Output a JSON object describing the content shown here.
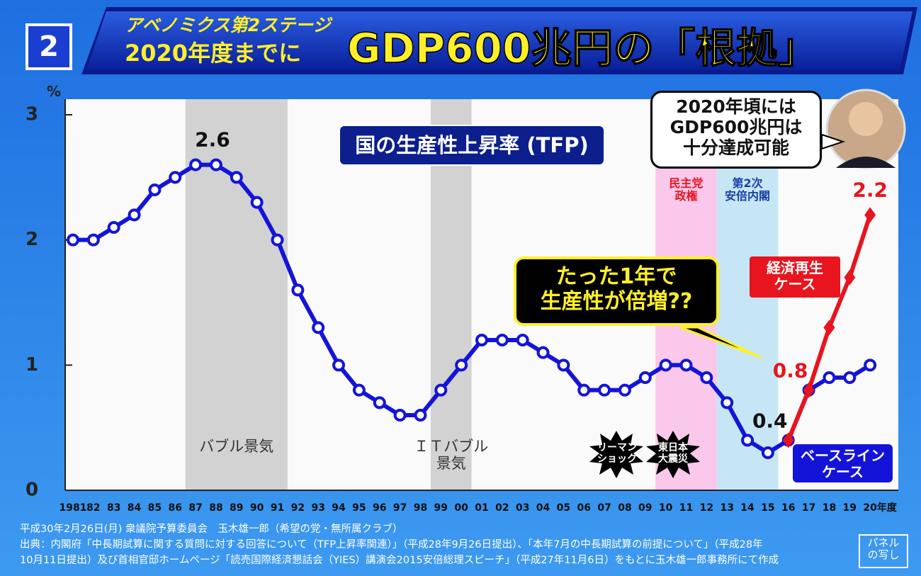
{
  "header": {
    "badge": "2",
    "kicker": "アベノミクス第2ステージ",
    "subtitle": "2020年度までに"
  },
  "chart_data": {
    "type": "line",
    "title": "GDP600兆円の「根拠」",
    "subtitle": "国の生産性上昇率 (TFP)",
    "y_unit": "%",
    "categories": [
      "1981",
      "82",
      "83",
      "84",
      "85",
      "86",
      "87",
      "88",
      "89",
      "90",
      "91",
      "92",
      "93",
      "94",
      "95",
      "96",
      "97",
      "98",
      "99",
      "00",
      "01",
      "02",
      "03",
      "04",
      "05",
      "06",
      "07",
      "08",
      "09",
      "10",
      "11",
      "12",
      "13",
      "14",
      "15",
      "16",
      "17",
      "18",
      "19",
      "20年度"
    ],
    "series": [
      {
        "name": "ベースライン\nケース",
        "color": "#1414d8",
        "marker": "circle",
        "values": [
          2.0,
          2.0,
          2.1,
          2.2,
          2.4,
          2.5,
          2.6,
          2.6,
          2.5,
          2.3,
          2.0,
          1.6,
          1.3,
          1.0,
          0.8,
          0.7,
          0.6,
          0.6,
          0.8,
          1.0,
          1.2,
          1.2,
          1.2,
          1.1,
          1.0,
          0.8,
          0.8,
          0.8,
          0.9,
          1.0,
          1.0,
          0.9,
          0.7,
          0.4,
          0.3,
          0.4,
          0.8,
          0.9,
          0.9,
          1.0
        ],
        "value_labels": [
          null,
          null,
          null,
          null,
          null,
          null,
          null,
          "2.6",
          null,
          null,
          null,
          null,
          null,
          null,
          null,
          null,
          null,
          null,
          null,
          null,
          null,
          null,
          null,
          null,
          null,
          null,
          null,
          null,
          null,
          null,
          null,
          null,
          null,
          null,
          null,
          "0.4",
          null,
          null,
          null,
          null
        ]
      },
      {
        "name": "経済再生\nケース",
        "color": "#e8141e",
        "marker": "diamond",
        "values": [
          null,
          null,
          null,
          null,
          null,
          null,
          null,
          null,
          null,
          null,
          null,
          null,
          null,
          null,
          null,
          null,
          null,
          null,
          null,
          null,
          null,
          null,
          null,
          null,
          null,
          null,
          null,
          null,
          null,
          null,
          null,
          null,
          null,
          null,
          null,
          0.4,
          0.8,
          1.3,
          1.7,
          2.2
        ],
        "value_labels": [
          null,
          null,
          null,
          null,
          null,
          null,
          null,
          null,
          null,
          null,
          null,
          null,
          null,
          null,
          null,
          null,
          null,
          null,
          null,
          null,
          null,
          null,
          null,
          null,
          null,
          null,
          null,
          null,
          null,
          null,
          null,
          null,
          null,
          null,
          null,
          null,
          "0.8",
          null,
          null,
          "2.2"
        ]
      }
    ],
    "ylim": [
      0,
      3
    ],
    "yticks": [
      0,
      1,
      2,
      3
    ],
    "regions": [
      {
        "from": "87",
        "to": "91",
        "color": "#d2d2d2",
        "label": "バブル景気",
        "label_color": "#333333"
      },
      {
        "from": "99",
        "to": "00",
        "color": "#d2d2d2",
        "label": "ＩＴバブル\n景気",
        "label_color": "#333333"
      },
      {
        "from": "10",
        "to": "12",
        "color": "#f9c8ea",
        "label": "民主党\n政権",
        "label_color": "#e8141e"
      },
      {
        "from": "13",
        "to": "15",
        "color": "#c6e6f6",
        "label": "第2次\n安倍内閣",
        "label_color": "#1a3fa8"
      }
    ],
    "events": [
      "リーマン\nショック",
      "東日本\n大震災"
    ],
    "callout": "たった1年で\n生産性が倍増??",
    "quote": "2020年頃には\nGDP600兆円は\n十分達成可能"
  },
  "footer": {
    "lines": [
      "平成30年2月26日(月) 衆議院予算委員会　玉木雄一郎（希望の党・無所属クラブ）",
      "出典：内閣府「中長期試算に関する質問に対する回答について（TFP上昇率関連）」（平成28年9月26日提出）、「本年7月の中長期試算の前提について」（平成28年",
      "10月11日提出）及び首相官邸ホームページ「読売国際経済懇話会（YIES）講演会2015安倍総理スピーチ」（平成27年11月6日）をもとに玉木雄一郎事務所にて作成"
    ],
    "stamp": "パネル\nの写し"
  }
}
